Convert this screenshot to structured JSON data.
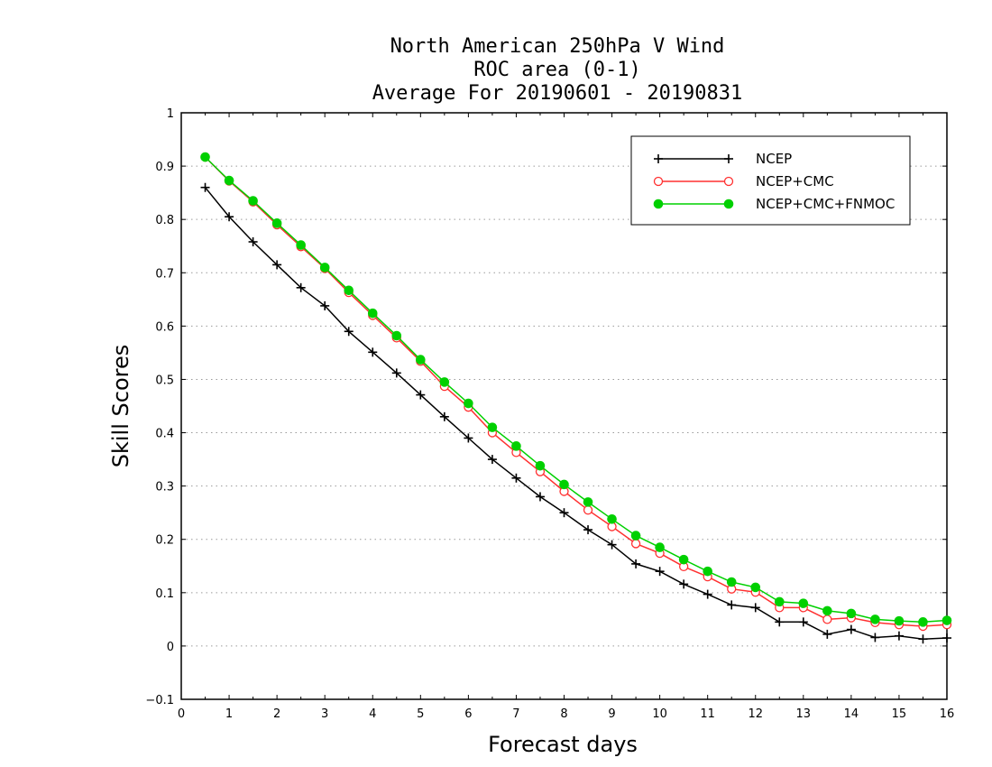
{
  "chart_data": {
    "type": "line",
    "title": [
      "North American 250hPa V Wind",
      "ROC area (0-1)",
      "Average For 20190601 - 20190831"
    ],
    "xlabel": "Forecast days",
    "ylabel": "Skill Scores",
    "xlim": [
      0,
      16
    ],
    "ylim": [
      -0.1,
      1
    ],
    "xticks": [
      0,
      1,
      2,
      3,
      4,
      5,
      6,
      7,
      8,
      9,
      10,
      11,
      12,
      13,
      14,
      15,
      16
    ],
    "yticks": [
      -0.1,
      0,
      0.1,
      0.2,
      0.3,
      0.4,
      0.5,
      0.6,
      0.7,
      0.8,
      0.9,
      1
    ],
    "ytick_labels": [
      "−0.1",
      "0",
      "0.1",
      "0.2",
      "0.3",
      "0.4",
      "0.5",
      "0.6",
      "0.7",
      "0.8",
      "0.9",
      "1"
    ],
    "grid": "horizontal dotted",
    "legend_position": "top-right",
    "x": [
      0.5,
      1,
      1.5,
      2,
      2.5,
      3,
      3.5,
      4,
      4.5,
      5,
      5.5,
      6,
      6.5,
      7,
      7.5,
      8,
      8.5,
      9,
      9.5,
      10,
      10.5,
      11,
      11.5,
      12,
      12.5,
      13,
      13.5,
      14,
      14.5,
      15,
      15.5,
      16
    ],
    "series": [
      {
        "name": "NCEP",
        "color": "#000000",
        "marker": "plus",
        "values": [
          0.86,
          0.805,
          0.758,
          0.715,
          0.672,
          0.638,
          0.59,
          0.551,
          0.512,
          0.471,
          0.43,
          0.39,
          0.35,
          0.315,
          0.28,
          0.25,
          0.218,
          0.19,
          0.154,
          0.14,
          0.116,
          0.097,
          0.077,
          0.072,
          0.045,
          0.045,
          0.022,
          0.031,
          0.016,
          0.019,
          0.013,
          0.015
        ]
      },
      {
        "name": "NCEP+CMC",
        "color": "#ff3030",
        "marker": "open-circle",
        "values": [
          0.917,
          0.872,
          0.833,
          0.79,
          0.749,
          0.708,
          0.663,
          0.62,
          0.578,
          0.534,
          0.487,
          0.448,
          0.4,
          0.363,
          0.327,
          0.29,
          0.255,
          0.224,
          0.192,
          0.174,
          0.149,
          0.13,
          0.107,
          0.101,
          0.072,
          0.072,
          0.05,
          0.053,
          0.044,
          0.04,
          0.037,
          0.04
        ]
      },
      {
        "name": "NCEP+CMC+FNMOC",
        "color": "#00d000",
        "marker": "filled-circle",
        "values": [
          0.917,
          0.873,
          0.835,
          0.793,
          0.752,
          0.71,
          0.667,
          0.624,
          0.582,
          0.537,
          0.495,
          0.455,
          0.41,
          0.375,
          0.338,
          0.303,
          0.27,
          0.238,
          0.207,
          0.185,
          0.162,
          0.14,
          0.12,
          0.11,
          0.083,
          0.08,
          0.066,
          0.061,
          0.05,
          0.047,
          0.045,
          0.048
        ]
      }
    ]
  }
}
